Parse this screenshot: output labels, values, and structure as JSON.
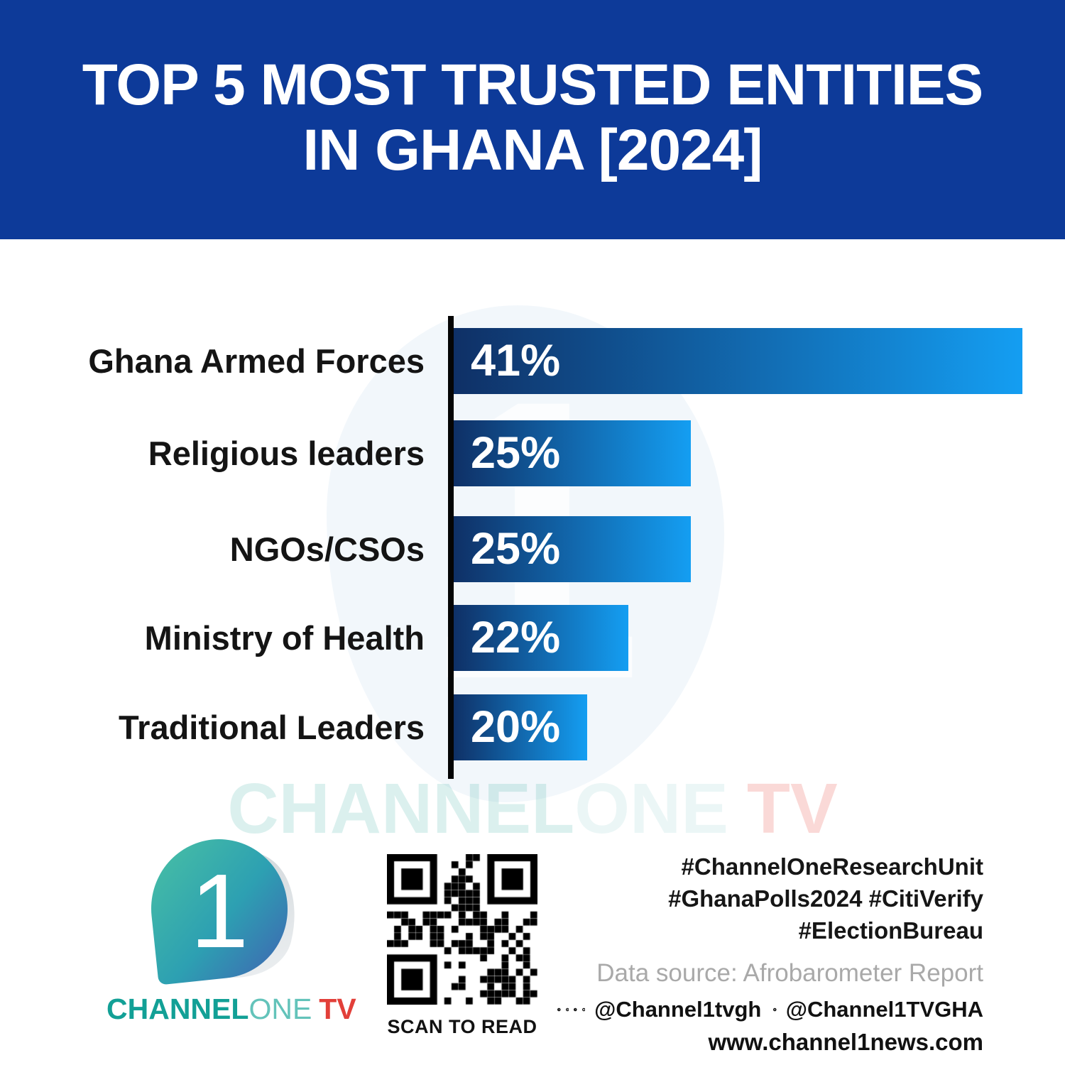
{
  "header": {
    "title_line1": "TOP 5 MOST TRUSTED ENTITIES",
    "title_line2": "IN GHANA [2024]",
    "bg_color": "#0d3a99",
    "text_color": "#ffffff"
  },
  "chart_data": {
    "type": "bar",
    "orientation": "horizontal",
    "title": "Top 5 most trusted entities in Ghana [2024]",
    "categories": [
      "Ghana Armed Forces",
      "Religious leaders",
      "NGOs/CSOs",
      "Ministry of Health",
      "Traditional Leaders"
    ],
    "values": [
      41,
      25,
      25,
      22,
      20
    ],
    "value_labels": [
      "41%",
      "25%",
      "25%",
      "22%",
      "20%"
    ],
    "xlabel": "",
    "ylabel": "",
    "grid": false,
    "legend": false,
    "bar_gradient_start": "#0f3066",
    "bar_gradient_end": "#149ef2",
    "axis_color": "#050505",
    "label_color": "#141414",
    "value_label_color": "#ffffff"
  },
  "watermark": {
    "part1": "CHANNEL",
    "part2": "ONE",
    "part3": "TV"
  },
  "footer": {
    "logo": {
      "one_glyph": "1",
      "brand_part1": "CHANNEL",
      "brand_part2": "ONE",
      "brand_part3": "TV",
      "teal_color": "#12a096",
      "light_teal_color": "#63c3ba",
      "red_color": "#e23f39"
    },
    "qr": {
      "caption": "SCAN TO READ"
    },
    "hashtags": [
      "#ChannelOneResearchUnit",
      "#GhanaPolls2024 #CitiVerify",
      "#ElectionBureau"
    ],
    "data_source": "Data source: Afrobarometer Report",
    "social": {
      "handle1": "@Channel1tvgh",
      "handle2": "@Channel1TVGHA",
      "icons": [
        "facebook-icon",
        "instagram-icon",
        "tiktok-icon",
        "youtube-icon",
        "x-icon"
      ]
    },
    "website": "www.channel1news.com"
  }
}
